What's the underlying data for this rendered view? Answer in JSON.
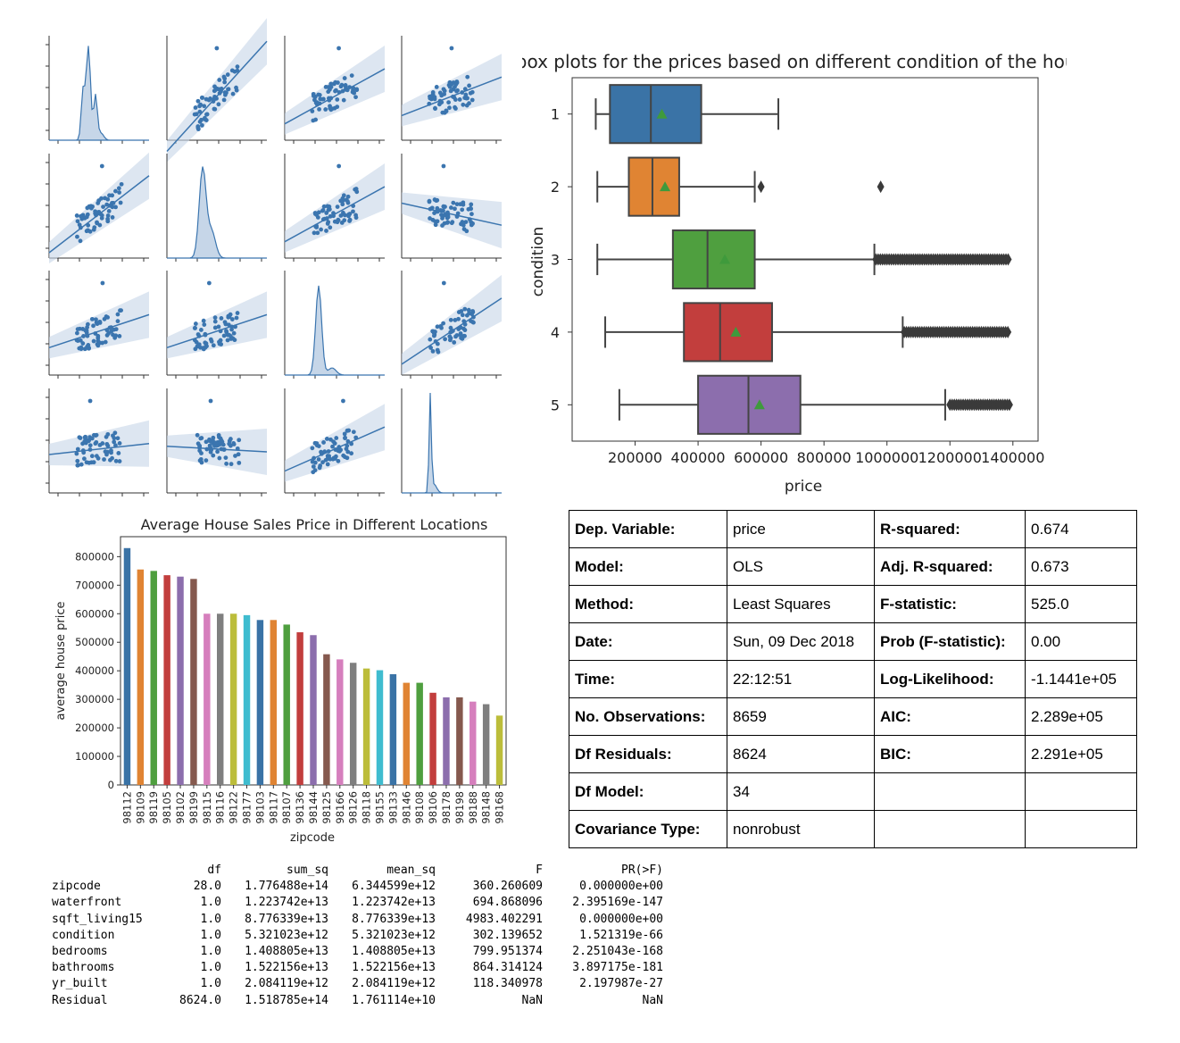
{
  "pairplot": {
    "panels": [
      {
        "row": 0,
        "col": 0,
        "kind": "kde"
      },
      {
        "row": 0,
        "col": 1,
        "kind": "reg",
        "slope": 1.0
      },
      {
        "row": 0,
        "col": 2,
        "kind": "reg",
        "slope": 0.5
      },
      {
        "row": 0,
        "col": 3,
        "kind": "reg",
        "slope": 0.35
      },
      {
        "row": 1,
        "col": 0,
        "kind": "reg",
        "slope": 0.7
      },
      {
        "row": 1,
        "col": 1,
        "kind": "kde"
      },
      {
        "row": 1,
        "col": 2,
        "kind": "reg",
        "slope": 0.5
      },
      {
        "row": 1,
        "col": 3,
        "kind": "reg",
        "slope": -0.2
      },
      {
        "row": 2,
        "col": 0,
        "kind": "reg",
        "slope": 0.3
      },
      {
        "row": 2,
        "col": 1,
        "kind": "reg",
        "slope": 0.3
      },
      {
        "row": 2,
        "col": 2,
        "kind": "kde"
      },
      {
        "row": 2,
        "col": 3,
        "kind": "reg",
        "slope": 0.6
      },
      {
        "row": 3,
        "col": 0,
        "kind": "reg",
        "slope": 0.1
      },
      {
        "row": 3,
        "col": 1,
        "kind": "reg",
        "slope": -0.05
      },
      {
        "row": 3,
        "col": 2,
        "kind": "reg",
        "slope": 0.4
      },
      {
        "row": 3,
        "col": 3,
        "kind": "kde"
      }
    ],
    "color": "#3b75af"
  },
  "chart_data": [
    {
      "type": "box",
      "title": "box plots for the prices based on different condition of the house",
      "xlabel": "price",
      "ylabel": "condition",
      "xlim": [
        0,
        1480000
      ],
      "xticks": [
        "200000",
        "400000",
        "600000",
        "800000",
        "1000000",
        "1200000",
        "1400000"
      ],
      "xtick_values": [
        200000,
        400000,
        600000,
        800000,
        1000000,
        1200000,
        1400000
      ],
      "categories": [
        "1",
        "2",
        "3",
        "4",
        "5"
      ],
      "boxes": [
        {
          "cond": "1",
          "whislo": 75000,
          "q1": 120000,
          "med": 250000,
          "q3": 410000,
          "whishi": 655000,
          "mean": 285000,
          "color": "#3a73a6",
          "fliers": []
        },
        {
          "cond": "2",
          "whislo": 80000,
          "q1": 180000,
          "med": 255000,
          "q3": 340000,
          "whishi": 580000,
          "mean": 295000,
          "color": "#e08433",
          "fliers": [
            600000,
            980000
          ]
        },
        {
          "cond": "3",
          "whislo": 80000,
          "q1": 320000,
          "med": 430000,
          "q3": 580000,
          "whishi": 960000,
          "mean": 485000,
          "color": "#4f9f3f",
          "fliers_range": [
            965000,
            1390000
          ]
        },
        {
          "cond": "4",
          "whislo": 105000,
          "q1": 355000,
          "med": 470000,
          "q3": 635000,
          "whishi": 1050000,
          "mean": 520000,
          "color": "#c23e3d",
          "fliers_range": [
            1055000,
            1390000
          ]
        },
        {
          "cond": "5",
          "whislo": 150000,
          "q1": 400000,
          "med": 560000,
          "q3": 725000,
          "whishi": 1185000,
          "mean": 595000,
          "color": "#8c6ead",
          "fliers_range": [
            1200000,
            1390000
          ]
        }
      ]
    },
    {
      "type": "bar",
      "title": "Average House Sales Price in Different Locations",
      "xlabel": "zipcode",
      "ylabel": "average house price",
      "ylim": [
        0,
        870000
      ],
      "yticks": [
        "0",
        "100000",
        "200000",
        "300000",
        "400000",
        "500000",
        "600000",
        "700000",
        "800000"
      ],
      "ytick_values": [
        0,
        100000,
        200000,
        300000,
        400000,
        500000,
        600000,
        700000,
        800000
      ],
      "categories": [
        "98112",
        "98109",
        "98119",
        "98105",
        "98102",
        "98199",
        "98115",
        "98116",
        "98122",
        "98177",
        "98103",
        "98117",
        "98107",
        "98136",
        "98144",
        "98125",
        "98166",
        "98126",
        "98118",
        "98155",
        "98133",
        "98146",
        "98108",
        "98106",
        "98178",
        "98198",
        "98188",
        "98148",
        "98168"
      ],
      "values": [
        830000,
        755000,
        750000,
        735000,
        730000,
        722000,
        600000,
        600000,
        600000,
        595000,
        578000,
        578000,
        562000,
        535000,
        525000,
        458000,
        440000,
        428000,
        408000,
        402000,
        388000,
        358000,
        358000,
        323000,
        307000,
        307000,
        292000,
        283000,
        243000
      ],
      "colors": [
        "#3a73a6",
        "#e08433",
        "#4f9f3f",
        "#c23e3d",
        "#8c6ead",
        "#85594e",
        "#d67fbd",
        "#7f7f7f",
        "#bcbd3a",
        "#3fbccf"
      ]
    }
  ],
  "ols": {
    "rows": [
      [
        "Dep. Variable:",
        "price",
        "R-squared:",
        "0.674"
      ],
      [
        "Model:",
        "OLS",
        "Adj. R-squared:",
        "0.673"
      ],
      [
        "Method:",
        "Least Squares",
        "F-statistic:",
        "525.0"
      ],
      [
        "Date:",
        "Sun, 09 Dec 2018",
        "Prob (F-statistic):",
        "0.00"
      ],
      [
        "Time:",
        "22:12:51",
        "Log-Likelihood:",
        "-1.1441e+05"
      ],
      [
        "No. Observations:",
        "8659",
        "AIC:",
        "2.289e+05"
      ],
      [
        "Df Residuals:",
        "8624",
        "BIC:",
        "2.291e+05"
      ],
      [
        "Df Model:",
        "34",
        "",
        ""
      ],
      [
        "Covariance Type:",
        "nonrobust",
        "",
        ""
      ]
    ]
  },
  "anova": {
    "header": [
      "",
      "df",
      "sum_sq",
      "mean_sq",
      "F",
      "PR(>F)"
    ],
    "rows": [
      [
        "zipcode",
        "28.0",
        "1.776488e+14",
        "6.344599e+12",
        "360.260609",
        "0.000000e+00"
      ],
      [
        "waterfront",
        "1.0",
        "1.223742e+13",
        "1.223742e+13",
        "694.868096",
        "2.395169e-147"
      ],
      [
        "sqft_living15",
        "1.0",
        "8.776339e+13",
        "8.776339e+13",
        "4983.402291",
        "0.000000e+00"
      ],
      [
        "condition",
        "1.0",
        "5.321023e+12",
        "5.321023e+12",
        "302.139652",
        "1.521319e-66"
      ],
      [
        "bedrooms",
        "1.0",
        "1.408805e+13",
        "1.408805e+13",
        "799.951374",
        "2.251043e-168"
      ],
      [
        "bathrooms",
        "1.0",
        "1.522156e+13",
        "1.522156e+13",
        "864.314124",
        "3.897175e-181"
      ],
      [
        "yr_built",
        "1.0",
        "2.084119e+12",
        "2.084119e+12",
        "118.340978",
        "2.197987e-27"
      ],
      [
        "Residual",
        "8624.0",
        "1.518785e+14",
        "1.761114e+10",
        "NaN",
        "NaN"
      ]
    ]
  }
}
